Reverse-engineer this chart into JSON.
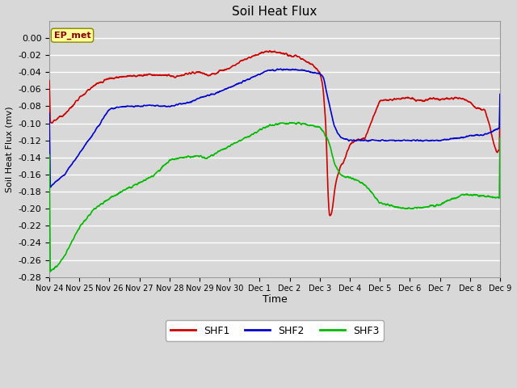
{
  "title": "Soil Heat Flux",
  "xlabel": "Time",
  "ylabel": "Soil Heat Flux (mv)",
  "annotation": "EP_met",
  "ylim": [
    -0.28,
    0.02
  ],
  "yticks": [
    0.0,
    -0.02,
    -0.04,
    -0.06,
    -0.08,
    -0.1,
    -0.12,
    -0.14,
    -0.16,
    -0.18,
    -0.2,
    -0.22,
    -0.24,
    -0.26,
    -0.28
  ],
  "xtick_labels": [
    "Nov 24",
    "Nov 25",
    "Nov 26",
    "Nov 27",
    "Nov 28",
    "Nov 29",
    "Nov 30",
    "Dec 1",
    "Dec 2",
    "Dec 3",
    "Dec 4",
    "Dec 5",
    "Dec 6",
    "Dec 7",
    "Dec 8",
    "Dec 9"
  ],
  "bg_color": "#d8d8d8",
  "plot_bg_color": "#d8d8d8",
  "grid_color": "#ffffff",
  "shf1_color": "#cc0000",
  "shf2_color": "#0000cc",
  "shf3_color": "#00bb00",
  "legend_entries": [
    "SHF1",
    "SHF2",
    "SHF3"
  ],
  "figwidth": 6.4,
  "figheight": 4.8,
  "dpi": 100
}
